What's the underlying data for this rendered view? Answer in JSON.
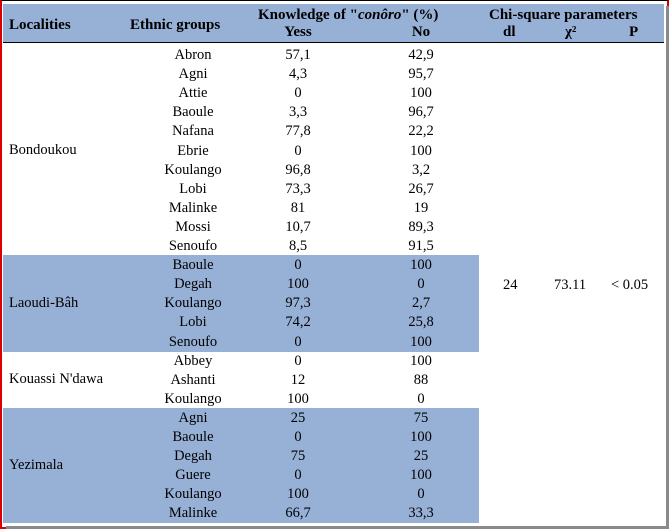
{
  "headers": {
    "localities": "Localities",
    "ethnic_groups": "Ethnic groups",
    "knowledge_prefix": "Knowledge of \"",
    "knowledge_term": "conôro",
    "knowledge_suffix": "\" (%)",
    "yes": "Yess",
    "no": "No",
    "chi": "Chi-square parameters",
    "dl": "dl",
    "chi2": "χ²",
    "p": "P"
  },
  "rows": [
    {
      "ethnic": "Abron",
      "yes": "57,1",
      "no": "42,9"
    },
    {
      "ethnic": "Agni",
      "yes": "4,3",
      "no": "95,7"
    },
    {
      "ethnic": "Attie",
      "yes": "0",
      "no": "100"
    },
    {
      "ethnic": "Baoule",
      "yes": "3,3",
      "no": "96,7"
    },
    {
      "ethnic": "Nafana",
      "yes": "77,8",
      "no": "22,2"
    },
    {
      "ethnic": "Ebrie",
      "yes": "0",
      "no": "100"
    },
    {
      "ethnic": "Koulango",
      "yes": "96,8",
      "no": "3,2"
    },
    {
      "ethnic": "Lobi",
      "yes": "73,3",
      "no": "26,7"
    },
    {
      "ethnic": "Malinke",
      "yes": "81",
      "no": "19"
    },
    {
      "ethnic": "Mossi",
      "yes": "10,7",
      "no": "89,3"
    },
    {
      "ethnic": "Senoufo",
      "yes": "8,5",
      "no": "91,5"
    },
    {
      "ethnic": "Baoule",
      "yes": "0",
      "no": "100"
    },
    {
      "ethnic": "Degah",
      "yes": "100",
      "no": "0"
    },
    {
      "ethnic": "Koulango",
      "yes": "97,3",
      "no": "2,7"
    },
    {
      "ethnic": "Lobi",
      "yes": "74,2",
      "no": "25,8"
    },
    {
      "ethnic": "Senoufo",
      "yes": "0",
      "no": "100"
    },
    {
      "ethnic": "Abbey",
      "yes": "0",
      "no": "100"
    },
    {
      "ethnic": "Ashanti",
      "yes": "12",
      "no": "88"
    },
    {
      "ethnic": "Koulango",
      "yes": "100",
      "no": "0"
    },
    {
      "ethnic": "Agni",
      "yes": "25",
      "no": "75"
    },
    {
      "ethnic": "Baoule",
      "yes": "0",
      "no": "100"
    },
    {
      "ethnic": "Degah",
      "yes": "75",
      "no": "25"
    },
    {
      "ethnic": "Guere",
      "yes": "0",
      "no": "100"
    },
    {
      "ethnic": "Koulango",
      "yes": "100",
      "no": "0"
    },
    {
      "ethnic": "Malinke",
      "yes": "66,7",
      "no": "33,3"
    }
  ],
  "localities": [
    {
      "name": "Bondoukou",
      "start": 0,
      "count": 11,
      "shaded": false
    },
    {
      "name": "Laoudi-Bâh",
      "start": 11,
      "count": 5,
      "shaded": true
    },
    {
      "name": "Kouassi N'dawa",
      "start": 16,
      "count": 3,
      "shaded": false
    },
    {
      "name": "Yezimala",
      "start": 19,
      "count": 6,
      "shaded": true
    }
  ],
  "stats": {
    "dl": "24",
    "chi2": "73.11",
    "p": "<  0.05"
  },
  "colors": {
    "header_band": "#96b0d6",
    "frame_border": "#d80000"
  }
}
